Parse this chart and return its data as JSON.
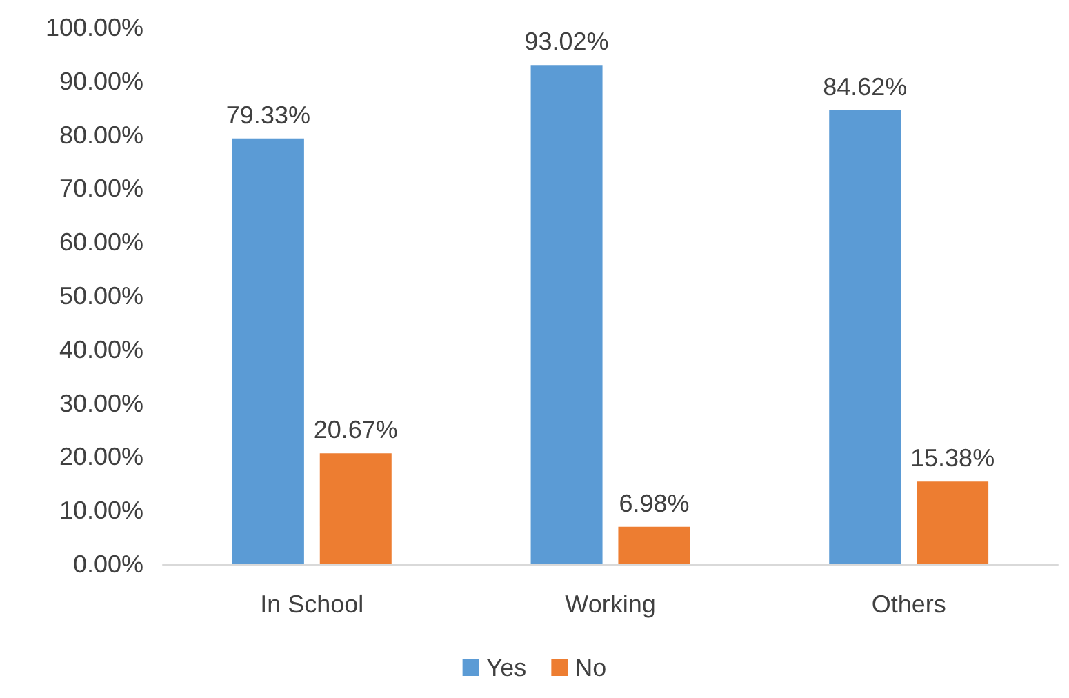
{
  "chart_data": {
    "type": "bar",
    "categories": [
      "In School",
      "Working",
      "Others"
    ],
    "series": [
      {
        "name": "Yes",
        "color": "#5b9bd5",
        "values": [
          79.33,
          93.02,
          84.62
        ],
        "value_labels": [
          "79.33%",
          "93.02%",
          "84.62%"
        ]
      },
      {
        "name": "No",
        "color": "#ed7d31",
        "values": [
          20.67,
          6.98,
          15.38
        ],
        "value_labels": [
          "20.67%",
          "6.98%",
          "15.38%"
        ]
      }
    ],
    "ylim": [
      0,
      100
    ],
    "yticks": [
      {
        "value": 0,
        "label": "0.00%"
      },
      {
        "value": 10,
        "label": "10.00%"
      },
      {
        "value": 20,
        "label": "20.00%"
      },
      {
        "value": 30,
        "label": "30.00%"
      },
      {
        "value": 40,
        "label": "40.00%"
      },
      {
        "value": 50,
        "label": "50.00%"
      },
      {
        "value": 60,
        "label": "60.00%"
      },
      {
        "value": 70,
        "label": "70.00%"
      },
      {
        "value": 80,
        "label": "80.00%"
      },
      {
        "value": 90,
        "label": "90.00%"
      },
      {
        "value": 100,
        "label": "100.00%"
      }
    ],
    "grid": false,
    "legend": "bottom"
  }
}
